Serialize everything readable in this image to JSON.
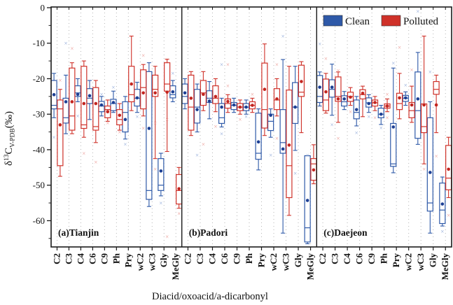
{
  "figure": {
    "x_axis_title": "Diacid/oxoacid/a-dicarbonyl",
    "y_axis_title_parts": {
      "delta": "δ",
      "sup": "13",
      "main": "C",
      "sub": "V-PDB",
      "unit": "(‰)"
    },
    "legend": [
      {
        "label": "Clean",
        "color": "#2e59a8"
      },
      {
        "label": "Polluted",
        "color": "#cf3129"
      }
    ],
    "colors": {
      "clean_box": "#2e59a8",
      "clean_mean": "#1c3f94",
      "clean_flier": "#8fa8d8",
      "polluted_box": "#cf3129",
      "polluted_mean": "#c3251f",
      "polluted_flier": "#eb9a94",
      "frame": "#1a1a1a",
      "gridline": "#b5b5b5"
    },
    "panel_labels": [
      "(a)Tianjin",
      "(b)Padori",
      "(c)Daejeon"
    ]
  },
  "chart_data": {
    "type": "boxplot-grouped",
    "title": "",
    "xlabel": "Diacid/oxoacid/a-dicarbonyl",
    "ylabel": "δ13C V-PDB (‰)",
    "ylim": [
      -67,
      0
    ],
    "y_major_ticks": [
      0,
      -10,
      -20,
      -30,
      -40,
      -50,
      -60
    ],
    "y_minor_step": 5,
    "grid": "vertical-dotted",
    "legend_position": "top-right",
    "categories": [
      "C2",
      "C3",
      "C4",
      "C6",
      "C9",
      "Ph",
      "Pry",
      "wC2",
      "wC3",
      "Gly",
      "MeGly"
    ],
    "series_names": [
      "Clean",
      "Polluted"
    ],
    "box_format": [
      "whisker_low",
      "q1",
      "median",
      "q3",
      "whisker_high",
      "mean",
      "outliers"
    ],
    "panels": [
      {
        "name": "(a)Tianjin",
        "clean": [
          [
            -31,
            -28.5,
            -27.5,
            -20.5,
            -18.5,
            -24.5,
            [
              -36.5
            ]
          ],
          [
            -35.5,
            -32.5,
            -31,
            -25.5,
            -19,
            -26.5,
            [
              -10
            ]
          ],
          [
            -26.5,
            -25,
            -24,
            -22,
            -20,
            -24.4,
            [
              -30.5
            ]
          ],
          [
            -31.5,
            -27,
            -25.5,
            -22.8,
            -20.5,
            -24.8,
            []
          ],
          [
            -30.5,
            -29.3,
            -27.7,
            -26.4,
            -25,
            -27.4,
            [
              -24.4
            ]
          ],
          [
            -29.5,
            -29,
            -27,
            -25.8,
            -23.5,
            -26.7,
            [
              -22.4
            ]
          ],
          [
            -37,
            -35,
            -29.5,
            -26.5,
            -25,
            -31.5,
            [
              -38.5
            ]
          ],
          [
            -29.5,
            -27.7,
            -25.5,
            -23,
            -21,
            -25.4,
            [
              -30.7
            ]
          ],
          [
            -56,
            -54,
            -51.5,
            -18,
            -15.5,
            -34,
            []
          ],
          [
            -53,
            -51.5,
            -50,
            -42.5,
            -41,
            -46,
            [
              -55
            ]
          ],
          [
            -26.5,
            -25.4,
            -24.5,
            -22,
            -20.5,
            -23.7,
            [
              -18.5
            ]
          ]
        ],
        "polluted": [
          [
            -47.5,
            -44.5,
            -28.5,
            -26,
            -23,
            -33,
            [
              -20.5
            ]
          ],
          [
            -35.5,
            -34.5,
            -30.5,
            -17,
            -15.5,
            -26.5,
            [
              -11.5
            ]
          ],
          [
            -36.5,
            -34,
            -33,
            -16.5,
            -15,
            -27,
            [
              -41
            ]
          ],
          [
            -38,
            -34.5,
            -33.5,
            -22.5,
            -20.5,
            -27,
            [
              -43.5
            ]
          ],
          [
            -32,
            -31,
            -28.7,
            -27.7,
            -26,
            -29.3,
            [
              -32.5
            ]
          ],
          [
            -34.5,
            -33,
            -31.5,
            -28.7,
            -27,
            -30.3,
            [
              -35
            ]
          ],
          [
            -29,
            -26.5,
            -24.5,
            -16.5,
            -8,
            -21.5,
            []
          ],
          [
            -30.5,
            -28.5,
            -22.5,
            -17.5,
            -16,
            -24,
            [
              -13.5,
              -34
            ]
          ],
          [
            -42.5,
            -25,
            -23,
            -19,
            -16.5,
            -24,
            [
              -45.5,
              -32.5
            ]
          ],
          [
            -40.5,
            -23.5,
            -21.5,
            -15.5,
            -14.5,
            -23.8,
            [
              -31.5,
              -64.5
            ]
          ],
          [
            -56.5,
            -55.3,
            -51.5,
            -47,
            -45,
            -51,
            [
              -58
            ]
          ]
        ]
      },
      {
        "name": "(b)Padori",
        "clean": [
          [
            -28.5,
            -27,
            -25,
            -21.5,
            -20,
            -24,
            []
          ],
          [
            -35,
            -32.5,
            -28,
            -23,
            -21.5,
            -28.7,
            [
              -41.5
            ]
          ],
          [
            -31.3,
            -26.7,
            -25.5,
            -23.4,
            -20.8,
            -26.3,
            []
          ],
          [
            -33.6,
            -32.6,
            -31,
            -27,
            -25.5,
            -28,
            [
              -35.5,
              -16
            ]
          ],
          [
            -29.5,
            -28.7,
            -27.5,
            -26.7,
            -25.5,
            -27.4,
            []
          ],
          [
            -30,
            -29,
            -28,
            -27,
            -26,
            -28,
            [
              -30.7
            ]
          ],
          [
            -45.7,
            -42.7,
            -41,
            -29.7,
            -28.5,
            -37.8,
            []
          ],
          [
            -36.5,
            -34.6,
            -32,
            -30,
            -28.5,
            -30.3,
            [
              -41.5
            ]
          ],
          [
            -63.5,
            -41,
            -38,
            -28.7,
            -14.6,
            -39.8,
            [
              -8
            ]
          ],
          [
            -40.2,
            -32.6,
            -28,
            -21.1,
            -16.5,
            -28,
            [
              -46.7
            ]
          ],
          [
            -66.5,
            -66,
            -62,
            -41.7,
            -41.7,
            -54.3,
            [
              -41.5
            ]
          ]
        ],
        "polluted": [
          [
            -36,
            -34.5,
            -28,
            -19,
            -18,
            -25.5,
            []
          ],
          [
            -29,
            -27.5,
            -24,
            -20.5,
            -18,
            -24.4,
            [
              -38.5
            ]
          ],
          [
            -29.3,
            -27,
            -25.5,
            -22,
            -20,
            -25,
            [
              -33.5
            ]
          ],
          [
            -29.5,
            -28.3,
            -27,
            -25.7,
            -24.5,
            -26.4,
            [
              -22,
              -16
            ]
          ],
          [
            -30,
            -29,
            -28,
            -27,
            -26,
            -28,
            [
              -31.5
            ]
          ],
          [
            -29.5,
            -28.5,
            -27.5,
            -26.5,
            -25.5,
            -27.5,
            [
              -24.4
            ]
          ],
          [
            -36,
            -33.9,
            -28.7,
            -15.6,
            -10.2,
            -23,
            []
          ],
          [
            -30.5,
            -28.7,
            -26,
            -22.8,
            -20,
            -25.7,
            [
              -16,
              -36.8
            ]
          ],
          [
            -58.5,
            -53.5,
            -44.5,
            -23.2,
            -16.5,
            -38.7,
            []
          ],
          [
            -35.2,
            -25,
            -23.8,
            -16.2,
            -15.2,
            -20.8,
            []
          ],
          [
            -49.6,
            -48.6,
            -44,
            -42.5,
            -38.6,
            -45.7,
            []
          ]
        ]
      },
      {
        "name": "(c)Daejeon",
        "clean": [
          [
            -27.7,
            -26.7,
            -25,
            -19.1,
            -18.1,
            -22.4,
            [
              -10.2
            ]
          ],
          [
            -30.3,
            -25.2,
            -23,
            -20.3,
            -15.9,
            -22.4,
            [
              -33
            ]
          ],
          [
            -28.7,
            -27.7,
            -26.5,
            -24.8,
            -23.6,
            -25.7,
            []
          ],
          [
            -33.3,
            -31.3,
            -29.5,
            -26,
            -25,
            -28.7,
            [
              -35.2
            ]
          ],
          [
            -29.5,
            -28,
            -26.8,
            -25.4,
            -24.5,
            -27,
            [
              -30.7
            ]
          ],
          [
            -32.9,
            -31,
            -30,
            -28.3,
            -27.5,
            -30,
            [
              -33.9
            ]
          ],
          [
            -46.5,
            -44.7,
            -44,
            -32.6,
            -17,
            -33.6,
            [
              -15.6
            ]
          ],
          [
            -27.5,
            -26.4,
            -25.5,
            -24.7,
            -23.7,
            -25.4,
            [
              -21.8
            ]
          ],
          [
            -38.5,
            -36.8,
            -29,
            -18.1,
            -12.6,
            -25.7,
            [
              -1
            ]
          ],
          [
            -63.5,
            -57.3,
            -55,
            -31,
            -26.5,
            -46.4,
            [
              -18.1
            ]
          ],
          [
            -61.5,
            -60.8,
            -57,
            -49.4,
            -47.7,
            -55.3,
            [
              -63
            ]
          ]
        ],
        "polluted": [
          [
            -29.7,
            -29,
            -26,
            -20.1,
            -18.5,
            -23.7,
            [
              -14.3
            ]
          ],
          [
            -32.3,
            -26.4,
            -25,
            -19.5,
            -18.1,
            -25.7,
            [
              -36.8,
              -17.7
            ]
          ],
          [
            -27.5,
            -26.4,
            -25,
            -23.8,
            -22.5,
            -25.2,
            [
              -29.3
            ]
          ],
          [
            -30.7,
            -25.7,
            -24.5,
            -23.1,
            -22.1,
            -24.1,
            []
          ],
          [
            -29,
            -27.7,
            -26.8,
            -26,
            -25,
            -26.7,
            [
              -31
            ]
          ],
          [
            -29.3,
            -28.3,
            -27.7,
            -27.1,
            -25.7,
            -27.7,
            [
              -31,
              -24.4
            ]
          ],
          [
            -31.3,
            -28.7,
            -27,
            -24.1,
            -18.5,
            -25.4,
            [
              -11.2
            ]
          ],
          [
            -32.3,
            -31,
            -29,
            -26.7,
            -22.1,
            -27.4,
            [
              -17.5
            ]
          ],
          [
            -44,
            -35.2,
            -33.5,
            -27.1,
            -8,
            -27.4,
            [
              -45.5
            ]
          ],
          [
            -35.2,
            -24.4,
            -23,
            -20.8,
            -19,
            -27.4,
            [
              -41.8
            ]
          ],
          [
            -53.5,
            -51.3,
            -48,
            -38.8,
            -36.5,
            -45.5,
            [
              -58.5
            ]
          ]
        ]
      }
    ]
  }
}
